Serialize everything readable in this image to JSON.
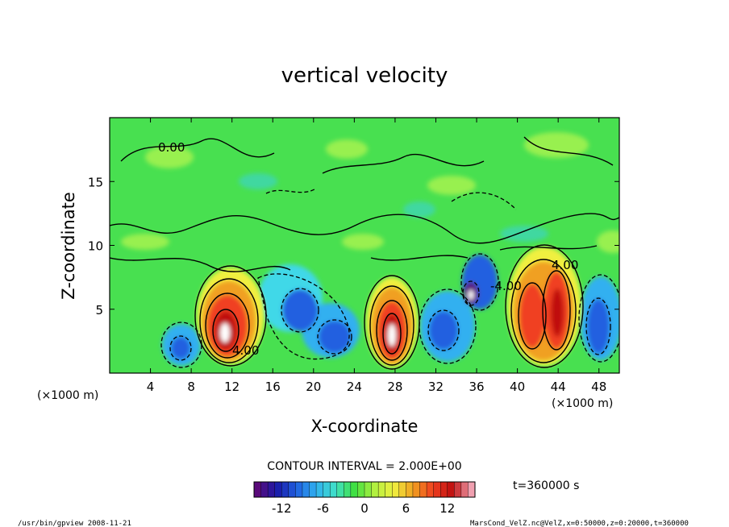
{
  "chart_data": {
    "type": "contour",
    "title": "vertical velocity",
    "xlabel": "X-coordinate",
    "ylabel": "Z-coordinate",
    "x_unit_left": "(×1000 m)",
    "x_unit_right": "(×1000 m)",
    "xlim": [
      0,
      50
    ],
    "ylim": [
      0,
      20
    ],
    "x_ticks": [
      4,
      8,
      12,
      16,
      20,
      24,
      28,
      32,
      36,
      40,
      44,
      48
    ],
    "y_ticks": [
      5,
      10,
      15
    ],
    "contour_interval_text": "CONTOUR INTERVAL = 2.000E+00",
    "contour_labels": [
      "0.00",
      "4.00",
      "-4.00"
    ],
    "time_label": "t=360000 s",
    "colorbar": {
      "min": -16,
      "max": 16,
      "ticks": [
        -12,
        -6,
        0,
        6,
        12
      ],
      "colors": [
        "#5a0a7a",
        "#1a1aa8",
        "#2060e0",
        "#30b0f0",
        "#40e0c8",
        "#40e040",
        "#b0f040",
        "#f0f040",
        "#f0a020",
        "#f04020",
        "#c01010",
        "#f0a0b0"
      ]
    },
    "features": [
      {
        "kind": "updraft",
        "x": 11,
        "z": 3,
        "peak": 16
      },
      {
        "kind": "updraft",
        "x": 27.5,
        "z": 2.7,
        "peak": 16
      },
      {
        "kind": "updraft",
        "x": 41,
        "z": 4.5,
        "peak": 12
      },
      {
        "kind": "updraft",
        "x": 43.8,
        "z": 5,
        "peak": 14
      },
      {
        "kind": "downdraft",
        "x": 6.8,
        "z": 1.8,
        "peak": -8
      },
      {
        "kind": "downdraft",
        "x": 19,
        "z": 5,
        "peak": -8
      },
      {
        "kind": "downdraft",
        "x": 22,
        "z": 3.2,
        "peak": -8
      },
      {
        "kind": "downdraft",
        "x": 33.5,
        "z": 3.5,
        "peak": -8
      },
      {
        "kind": "downdraft",
        "x": 35,
        "z": 6.3,
        "peak": -16
      },
      {
        "kind": "downdraft",
        "x": 47.5,
        "z": 4,
        "peak": -10
      }
    ]
  },
  "footer": {
    "left": "/usr/bin/gpview  2008-11-21",
    "right": "MarsCond_VelZ.nc@VelZ,x=0:50000,z=0:20000,t=360000"
  }
}
